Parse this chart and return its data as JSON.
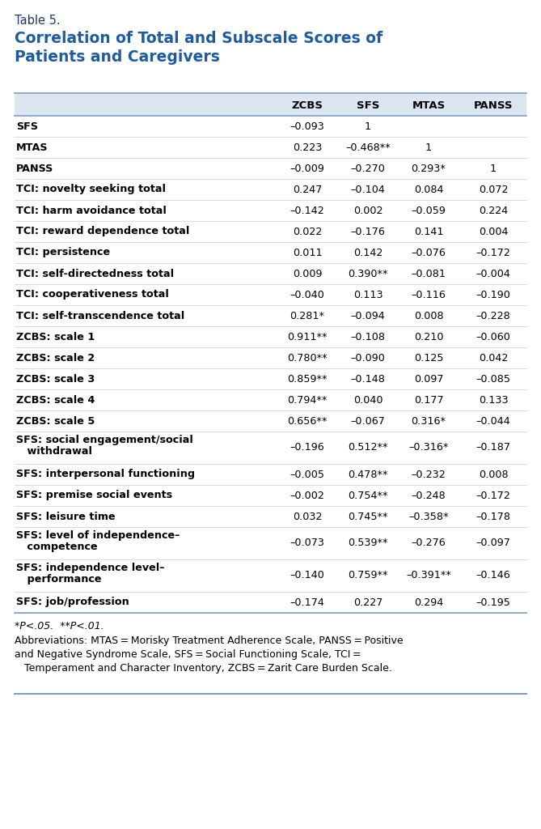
{
  "table_label": "Table 5.",
  "title": "Correlation of Total and Subscale Scores of\nPatients and Caregivers",
  "col_headers": [
    "",
    "ZCBS",
    "SFS",
    "MTAS",
    "PANSS"
  ],
  "rows": [
    [
      "SFS",
      "–0.093",
      "1",
      "",
      ""
    ],
    [
      "MTAS",
      "0.223",
      "–0.468**",
      "1",
      ""
    ],
    [
      "PANSS",
      "–0.009",
      "–0.270",
      "0.293*",
      "1"
    ],
    [
      "TCI: novelty seeking total",
      "0.247",
      "–0.104",
      "0.084",
      "0.072"
    ],
    [
      "TCI: harm avoidance total",
      "–0.142",
      "0.002",
      "–0.059",
      "0.224"
    ],
    [
      "TCI: reward dependence total",
      "0.022",
      "–0.176",
      "0.141",
      "0.004"
    ],
    [
      "TCI: persistence",
      "0.011",
      "0.142",
      "–0.076",
      "–0.172"
    ],
    [
      "TCI: self-directedness total",
      "0.009",
      "0.390**",
      "–0.081",
      "–0.004"
    ],
    [
      "TCI: cooperativeness total",
      "–0.040",
      "0.113",
      "–0.116",
      "–0.190"
    ],
    [
      "TCI: self-transcendence total",
      "0.281*",
      "–0.094",
      "0.008",
      "–0.228"
    ],
    [
      "ZCBS: scale 1",
      "0.911**",
      "–0.108",
      "0.210",
      "–0.060"
    ],
    [
      "ZCBS: scale 2",
      "0.780**",
      "–0.090",
      "0.125",
      "0.042"
    ],
    [
      "ZCBS: scale 3",
      "0.859**",
      "–0.148",
      "0.097",
      "–0.085"
    ],
    [
      "ZCBS: scale 4",
      "0.794**",
      "0.040",
      "0.177",
      "0.133"
    ],
    [
      "ZCBS: scale 5",
      "0.656**",
      "–0.067",
      "0.316*",
      "–0.044"
    ],
    [
      "SFS: social engagement/social\n   withdrawal",
      "–0.196",
      "0.512**",
      "–0.316*",
      "–0.187"
    ],
    [
      "SFS: interpersonal functioning",
      "–0.005",
      "0.478**",
      "–0.232",
      "0.008"
    ],
    [
      "SFS: premise social events",
      "–0.002",
      "0.754**",
      "–0.248",
      "–0.172"
    ],
    [
      "SFS: leisure time",
      "0.032",
      "0.745**",
      "–0.358*",
      "–0.178"
    ],
    [
      "SFS: level of independence–\n   competence",
      "–0.073",
      "0.539**",
      "–0.276",
      "–0.097"
    ],
    [
      "SFS: independence level–\n   performance",
      "–0.140",
      "0.759**",
      "–0.391**",
      "–0.146"
    ],
    [
      "SFS: job/profession",
      "–0.174",
      "0.227",
      "0.294",
      "–0.195"
    ]
  ],
  "footnote1": "*P<.05.  **P<.01.",
  "footnote2": "Abbreviations: MTAS = Morisky Treatment Adherence Scale, PANSS = Positive\nand Negative Syndrome Scale, SFS = Social Functioning Scale, TCI =\n   Temperament and Character Inventory, ZCBS = Zarit Care Burden Scale.",
  "header_bg": "#dce6f1",
  "table_label_color": "#1f3864",
  "title_color": "#1f5c99",
  "row_label_bold_color": "#000000",
  "col_header_color": "#000000",
  "border_color": "#7f9dbf",
  "bg_color": "#ffffff"
}
